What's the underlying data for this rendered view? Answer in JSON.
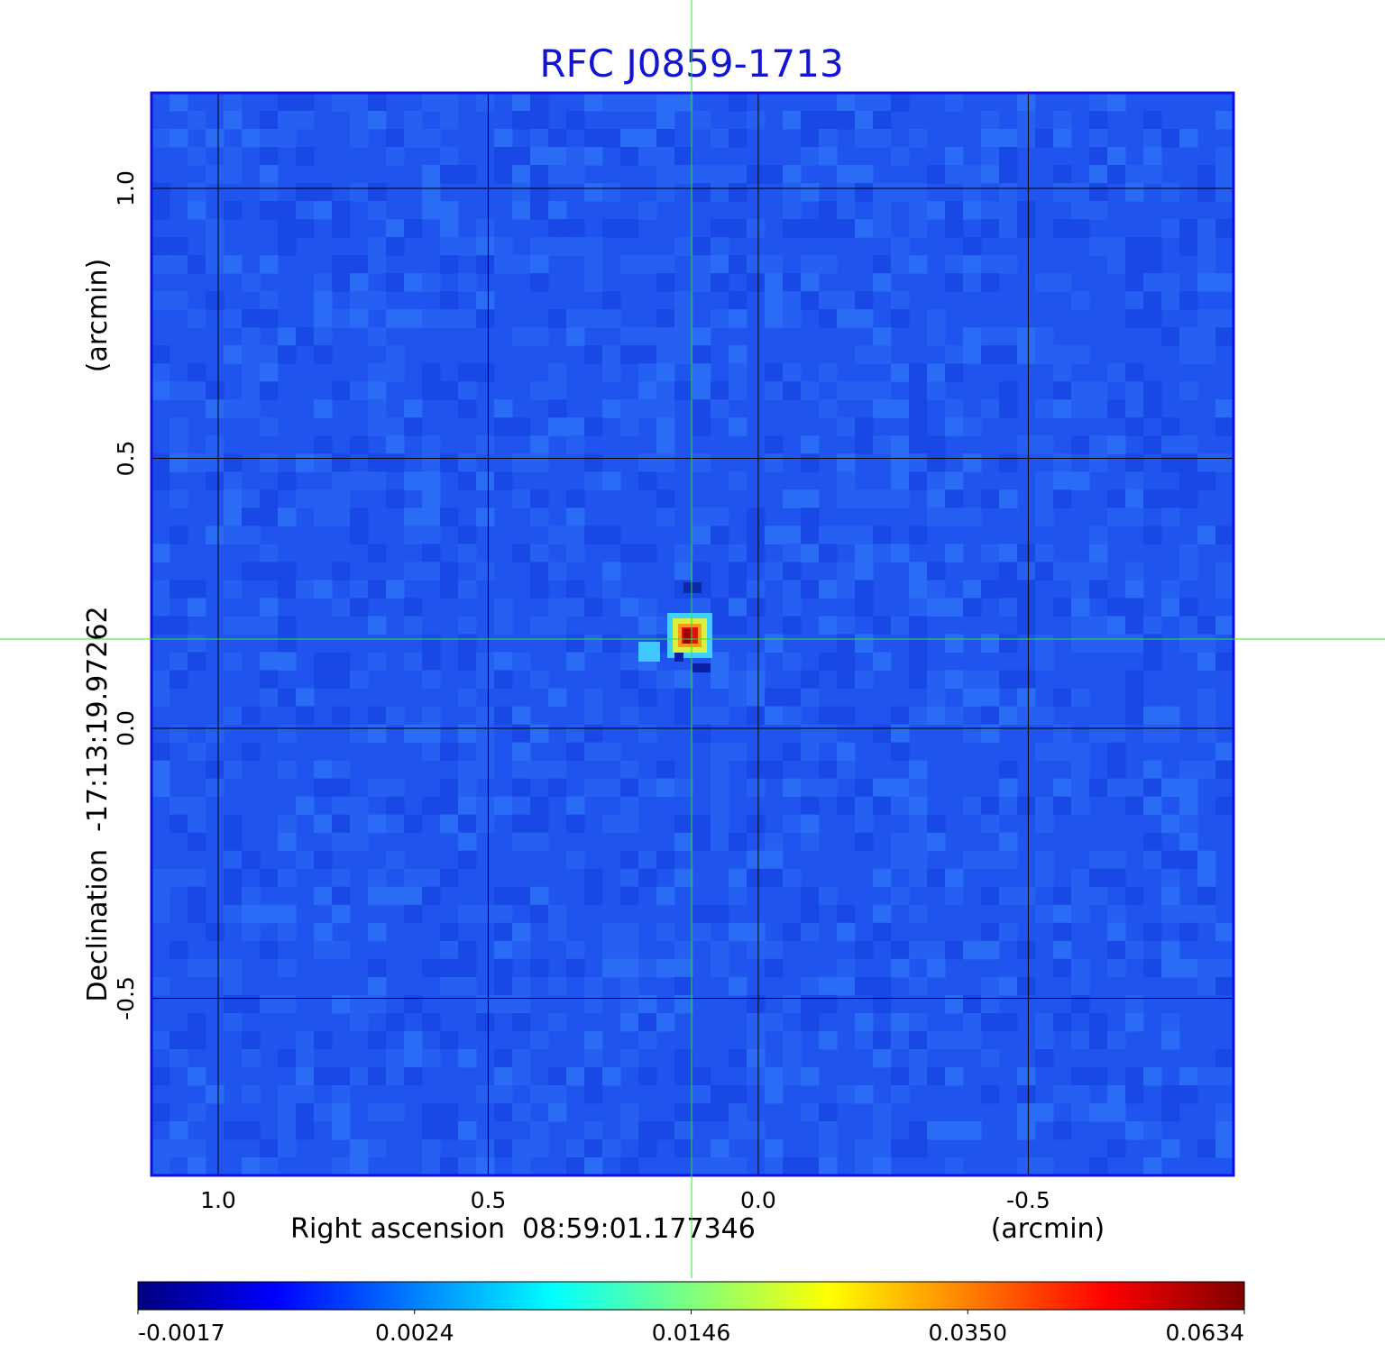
{
  "chart_data": {
    "type": "image",
    "title": "RFC J0859-1713",
    "x_label": "Right ascension  08:59:01.177346",
    "x_unit": "(arcmin)",
    "y_label": "Declination  -17:13:19.97262",
    "y_unit": "(arcmin)",
    "xlim": [
      1.1235,
      -0.88
    ],
    "ylim": [
      -0.828,
      1.177
    ],
    "xticks": [
      {
        "value": 1.0,
        "label": "1.0"
      },
      0.5,
      {
        "value": 0.0,
        "label": "0.0"
      },
      -0.5
    ],
    "yticks": [
      {
        "value": 1.0,
        "label": "1.0"
      },
      0.5,
      {
        "value": 0.0,
        "label": "0.0"
      },
      -0.5
    ],
    "grid": true,
    "colormap": [
      "#00007f",
      "#0000ff",
      "#007fff",
      "#00ffff",
      "#7fff7f",
      "#ffff00",
      "#ff7f00",
      "#ff0000",
      "#7f0000"
    ],
    "colorbar_ticks": [
      -0.0017,
      0.0024,
      0.0146,
      {
        "value": 0.035,
        "label": "0.0350"
      },
      0.0634
    ]
  }
}
